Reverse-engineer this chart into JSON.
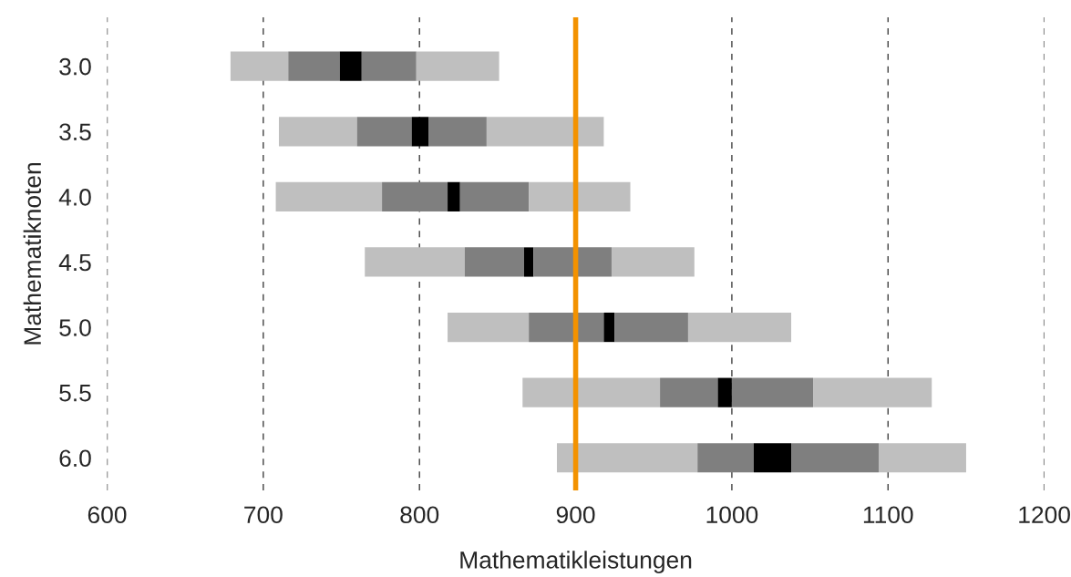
{
  "chart_data": {
    "type": "bar",
    "orientation": "horizontal",
    "xlabel": "Mathematikleistungen",
    "ylabel": "Mathematiknoten",
    "categories": [
      "3.0",
      "3.5",
      "4.0",
      "4.5",
      "5.0",
      "5.5",
      "6.0"
    ],
    "series": [
      {
        "color": "#bfbfbf",
        "base": [
          679,
          710,
          708,
          765,
          818,
          866,
          888
        ],
        "values": [
          37,
          50,
          68,
          64,
          52,
          88,
          90
        ]
      },
      {
        "color": "#7f7f7f",
        "base": [
          716,
          760,
          776,
          829,
          870,
          954,
          978
        ],
        "values": [
          33,
          35,
          42,
          38,
          48,
          37,
          36
        ]
      },
      {
        "color": "#000000",
        "base": [
          749,
          795,
          818,
          867,
          918,
          991,
          1014
        ],
        "values": [
          14,
          11,
          8,
          6,
          7,
          9,
          24
        ]
      },
      {
        "color": "#7f7f7f",
        "base": [
          763,
          806,
          826,
          873,
          925,
          1000,
          1038
        ],
        "values": [
          35,
          37,
          44,
          50,
          47,
          52,
          56
        ]
      },
      {
        "color": "#bfbfbf",
        "base": [
          798,
          843,
          870,
          923,
          972,
          1052,
          1094
        ],
        "values": [
          53,
          75,
          65,
          53,
          66,
          76,
          56
        ]
      }
    ],
    "xlim": [
      600,
      1200
    ],
    "xticks": [
      600,
      700,
      800,
      900,
      1000,
      1100,
      1200
    ],
    "grid": "x",
    "ref_lines": [
      {
        "axis": "x",
        "value": 900,
        "color": "#f39200",
        "line_style": "solid"
      }
    ]
  }
}
